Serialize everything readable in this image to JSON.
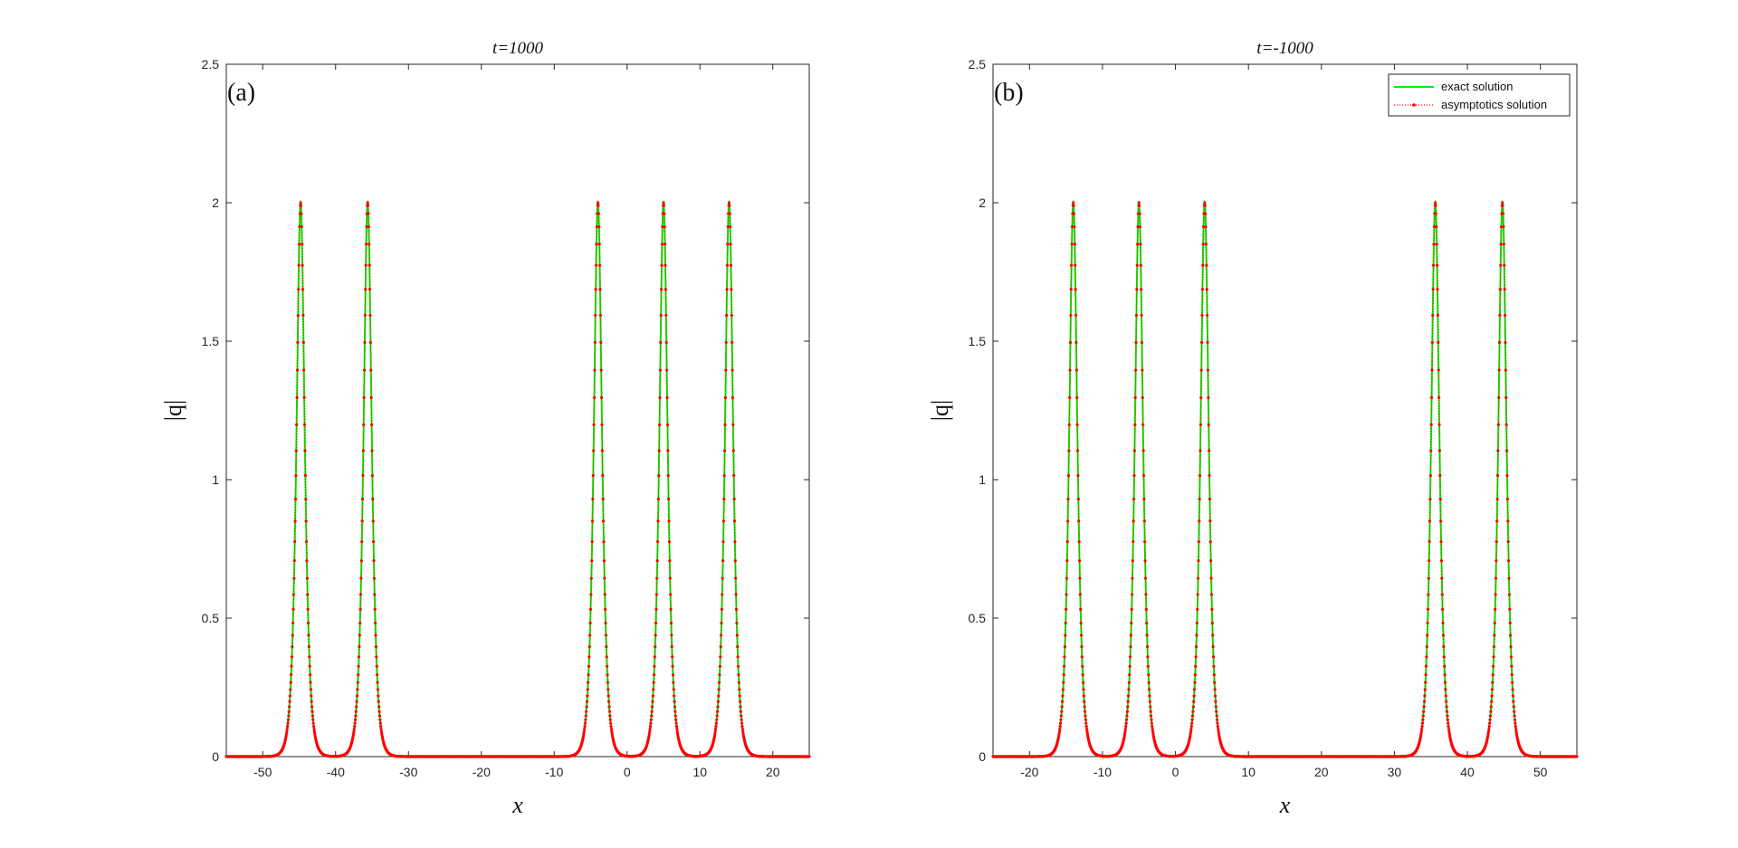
{
  "chart_data": [
    {
      "type": "line",
      "panel_label": "(a)",
      "title": "t=1000",
      "xlabel": "x",
      "ylabel": "|q|",
      "xlim": [
        -55,
        25
      ],
      "ylim": [
        0,
        2.5
      ],
      "xticks": [
        -50,
        -40,
        -30,
        -20,
        -10,
        0,
        10,
        20
      ],
      "yticks": [
        0,
        0.5,
        1,
        1.5,
        2,
        2.5
      ],
      "peaks": [
        {
          "x": -44.8,
          "height": 2
        },
        {
          "x": -35.6,
          "height": 2
        },
        {
          "x": -4.0,
          "height": 2
        },
        {
          "x": 5.0,
          "height": 2
        },
        {
          "x": 14.0,
          "height": 2
        }
      ],
      "series": [
        {
          "name": "exact solution",
          "color": "#00ee00",
          "style": "solid"
        },
        {
          "name": "asymptotics solution",
          "color": "#ff0000",
          "style": "dotted-markers"
        }
      ],
      "legend": null
    },
    {
      "type": "line",
      "panel_label": "(b)",
      "title": "t=-1000",
      "xlabel": "x",
      "ylabel": "|q|",
      "xlim": [
        -25,
        55
      ],
      "ylim": [
        0,
        2.5
      ],
      "xticks": [
        -20,
        -10,
        0,
        10,
        20,
        30,
        40,
        50
      ],
      "yticks": [
        0,
        0.5,
        1,
        1.5,
        2,
        2.5
      ],
      "peaks": [
        {
          "x": -14.0,
          "height": 2
        },
        {
          "x": -5.0,
          "height": 2
        },
        {
          "x": 4.0,
          "height": 2
        },
        {
          "x": 35.6,
          "height": 2
        },
        {
          "x": 44.8,
          "height": 2
        }
      ],
      "series": [
        {
          "name": "exact solution",
          "color": "#00ee00",
          "style": "solid"
        },
        {
          "name": "asymptotics solution",
          "color": "#ff0000",
          "style": "dotted-markers"
        }
      ],
      "legend": {
        "placement": "top-right",
        "entries": [
          "exact solution",
          "asymptotics solution"
        ]
      }
    }
  ]
}
